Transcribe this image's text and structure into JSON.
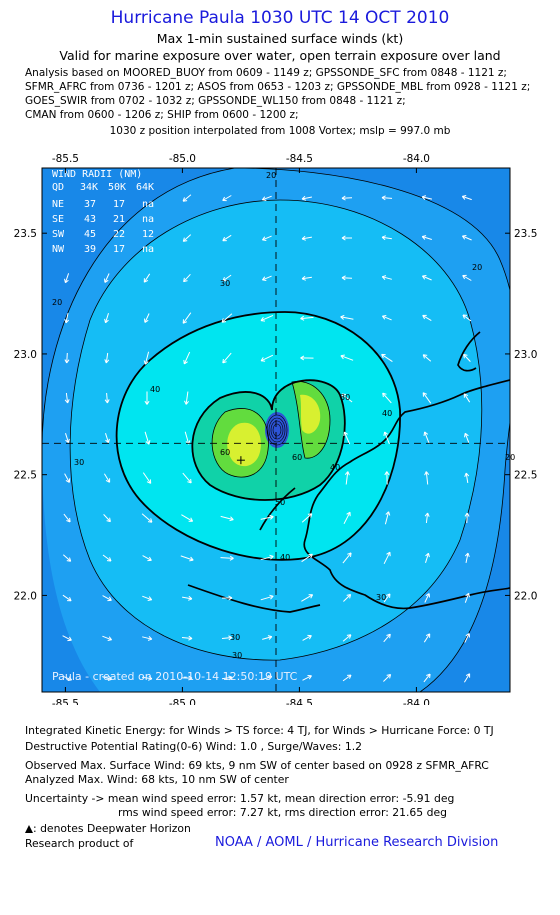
{
  "header": {
    "title": "Hurricane Paula 1030 UTC 14 OCT 2010",
    "subtitle": "Max 1-min sustained surface winds (kt)",
    "validity": "Valid for marine exposure over water, open terrain exposure over land"
  },
  "analysis_lines": [
    "Analysis based on MOORED_BUOY from 0609 - 1149 z; GPSSONDE_SFC from 0848 - 1121 z;",
    "SFMR_AFRC from 0736 - 1201 z; ASOS from 0653 - 1203 z; GPSSONDE_MBL from 0928 - 1121 z;",
    "GOES_SWIR from 0702 - 1032 z; GPSSONDE_WL150 from 0848 - 1121 z;",
    "CMAN from 0600 - 1206 z; SHIP from 0600 - 1200 z;"
  ],
  "position_note": "1030 z position interpolated from 1008 Vortex; mslp = 997.0 mb",
  "map": {
    "lon_ticks": [
      "-85.5",
      "-85.0",
      "-84.5",
      "-84.0"
    ],
    "lat_ticks": [
      "23.5",
      "23.0",
      "22.5",
      "22.0"
    ],
    "lon_range": [
      -85.6,
      -83.6
    ],
    "lat_range": [
      21.6,
      23.77
    ],
    "center": {
      "lon": -84.6,
      "lat": 22.63
    },
    "max_wind_point": {
      "lon": -84.75,
      "lat": 22.56
    },
    "contour_labels": [
      "20",
      "20",
      "20",
      "20",
      "30",
      "30",
      "30",
      "30",
      "30",
      "30",
      "40",
      "40",
      "40",
      "40",
      "50",
      "60",
      "60"
    ],
    "watermark": "Paula - created on 2010-10-14 12:50:19 UTC",
    "colors": {
      "level_20": "#1ea0f2",
      "level_30": "#15bdf5",
      "level_40": "#00e5f0",
      "level_50": "#10d2a8",
      "level_60": "#62dc3e",
      "level_65": "#d8f030",
      "core": "#2d54d6",
      "outside": "#1888e8"
    }
  },
  "wind_radii": {
    "title": "WIND RADII (NM)",
    "header": [
      "QD",
      "34K",
      "50K",
      "64K"
    ],
    "rows": [
      [
        "NE",
        "37",
        "17",
        "na"
      ],
      [
        "SE",
        "43",
        "21",
        "na"
      ],
      [
        "SW",
        "45",
        "22",
        "12"
      ],
      [
        "NW",
        "39",
        "17",
        "na"
      ]
    ]
  },
  "footer": {
    "ike": "Integrated Kinetic Energy:  for Winds > TS force: 4 TJ,  for Winds > Hurricane Force: 0 TJ",
    "dpr": "Destructive Potential Rating(0-6)   Wind: 1.0 , Surge/Waves: 1.2",
    "observed": "Observed Max. Surface Wind: 69 kts, 9 nm SW of center based on 0928 z SFMR_AFRC",
    "analyzed": "Analyzed Max. Wind: 68 kts, 10 nm SW of center",
    "uncertainty1": "Uncertainty -> mean wind speed error: 1.57 kt,   mean direction error:  -5.91 deg",
    "uncertainty2": "rms wind speed error: 7.27 kt,   rms direction error:  21.65 deg",
    "deepwater": ": denotes Deepwater Horizon",
    "research": "Research product of",
    "org": "NOAA / AOML / Hurricane Research Division"
  }
}
